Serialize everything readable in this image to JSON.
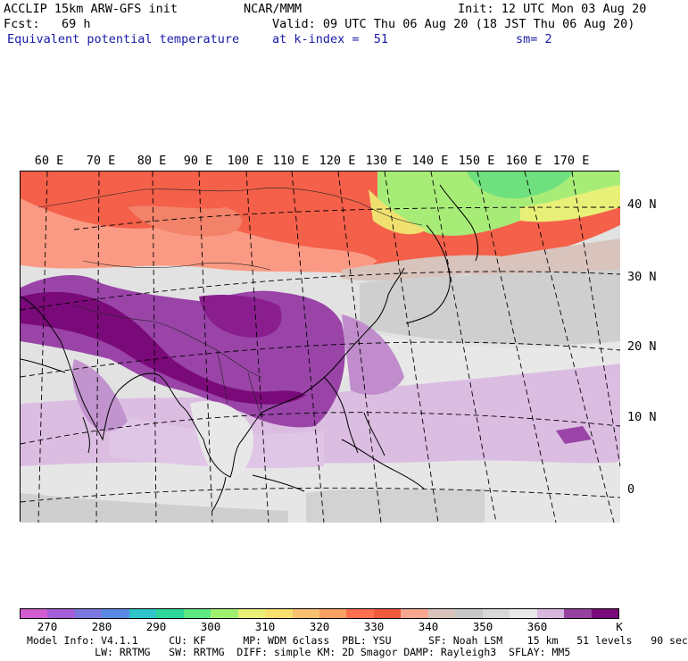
{
  "header": {
    "model_line": "ACCLIP 15km ARW-GFS init",
    "org": "NCAR/MMM",
    "init": "Init: 12 UTC Mon 03 Aug 20",
    "fcst": "Fcst:   69 h",
    "valid": "Valid: 09 UTC Thu 06 Aug 20 (18 JST Thu 06 Aug 20)",
    "field": "Equivalent potential temperature",
    "level": "at k-index =  51",
    "smooth": "sm= 2"
  },
  "map": {
    "longitude_labels": [
      "60 E",
      "70 E",
      "80 E",
      "90 E",
      "100 E",
      "110 E",
      "120 E",
      "130 E",
      "140 E",
      "150 E",
      "160 E",
      "170 E"
    ],
    "latitude_labels": [
      "40 N",
      "30 N",
      "20 N",
      "10 N",
      "0"
    ]
  },
  "colorbar": {
    "colors": [
      "#d25cd0",
      "#a35ed8",
      "#7c78e0",
      "#5a8ae6",
      "#2fc4c8",
      "#2dd69a",
      "#5ce882",
      "#a0f070",
      "#e8f078",
      "#f8e070",
      "#f8c070",
      "#fda064",
      "#ff6e50",
      "#f25a3c",
      "#f8a890",
      "#d8c4bc",
      "#c8c8c8",
      "#d8d8d8",
      "#e8e8e8",
      "#d8b8e0",
      "#9640a0",
      "#7a0a7a"
    ],
    "labels": [
      "270",
      "280",
      "290",
      "300",
      "310",
      "320",
      "330",
      "340",
      "350",
      "360"
    ],
    "unit": "K"
  },
  "footer": {
    "line1": "Model Info: V4.1.1     CU: KF      MP: WDM 6class  PBL: YSU      SF: Noah LSM    15 km   51 levels   90 sec",
    "line2": "           LW: RRTMG   SW: RRTMG  DIFF: simple KM: 2D Smagor DAMP: Rayleigh3  SFLAY: MM5"
  }
}
